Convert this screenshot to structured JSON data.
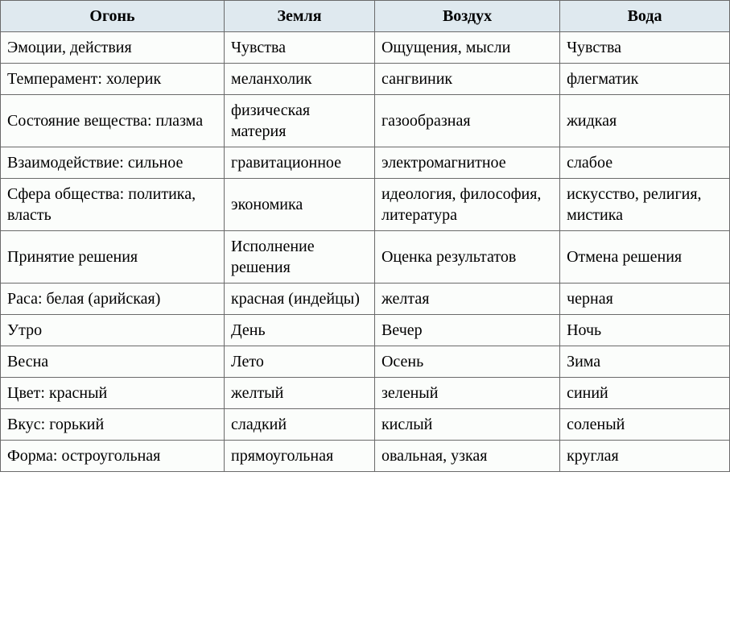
{
  "table": {
    "type": "table",
    "header_background": "#dfe9ef",
    "body_background": "#fbfdfb",
    "border_color": "#6a6a6a",
    "text_color": "#000000",
    "font_family": "Times New Roman",
    "font_size": 20,
    "columns": [
      {
        "label": "Огонь",
        "width": "29%"
      },
      {
        "label": "Земля",
        "width": "19.5%"
      },
      {
        "label": "Воздух",
        "width": "24%"
      },
      {
        "label": "Вода",
        "width": "22%"
      }
    ],
    "rows": [
      [
        "Эмоции, действия",
        "Чувства",
        "Ощущения, мысли",
        "Чувства"
      ],
      [
        "Темперамент: холерик",
        "меланхолик",
        "сангвиник",
        "флегматик"
      ],
      [
        "Состояние вещества: плазма",
        "физическая материя",
        "газообразная",
        "жидкая"
      ],
      [
        "Взаимодействие: сильное",
        "гравитационное",
        "электромагнитное",
        "слабое"
      ],
      [
        "Сфера общества: политика, власть",
        "экономика",
        "идеология, философия, литература",
        "искусство, религия, мистика"
      ],
      [
        "Принятие решения",
        "Исполнение решения",
        "Оценка результатов",
        "Отмена решения"
      ],
      [
        "Раса: белая (арийская)",
        "красная (индейцы)",
        "желтая",
        "черная"
      ],
      [
        "Утро",
        "День",
        "Вечер",
        "Ночь"
      ],
      [
        "Весна",
        "Лето",
        "Осень",
        "Зима"
      ],
      [
        "Цвет: красный",
        "желтый",
        "зеленый",
        "синий"
      ],
      [
        "Вкус: горький",
        "сладкий",
        "кислый",
        "соленый"
      ],
      [
        "Форма: остроугольная",
        "прямоугольная",
        "овальная, узкая",
        "круглая"
      ]
    ]
  }
}
